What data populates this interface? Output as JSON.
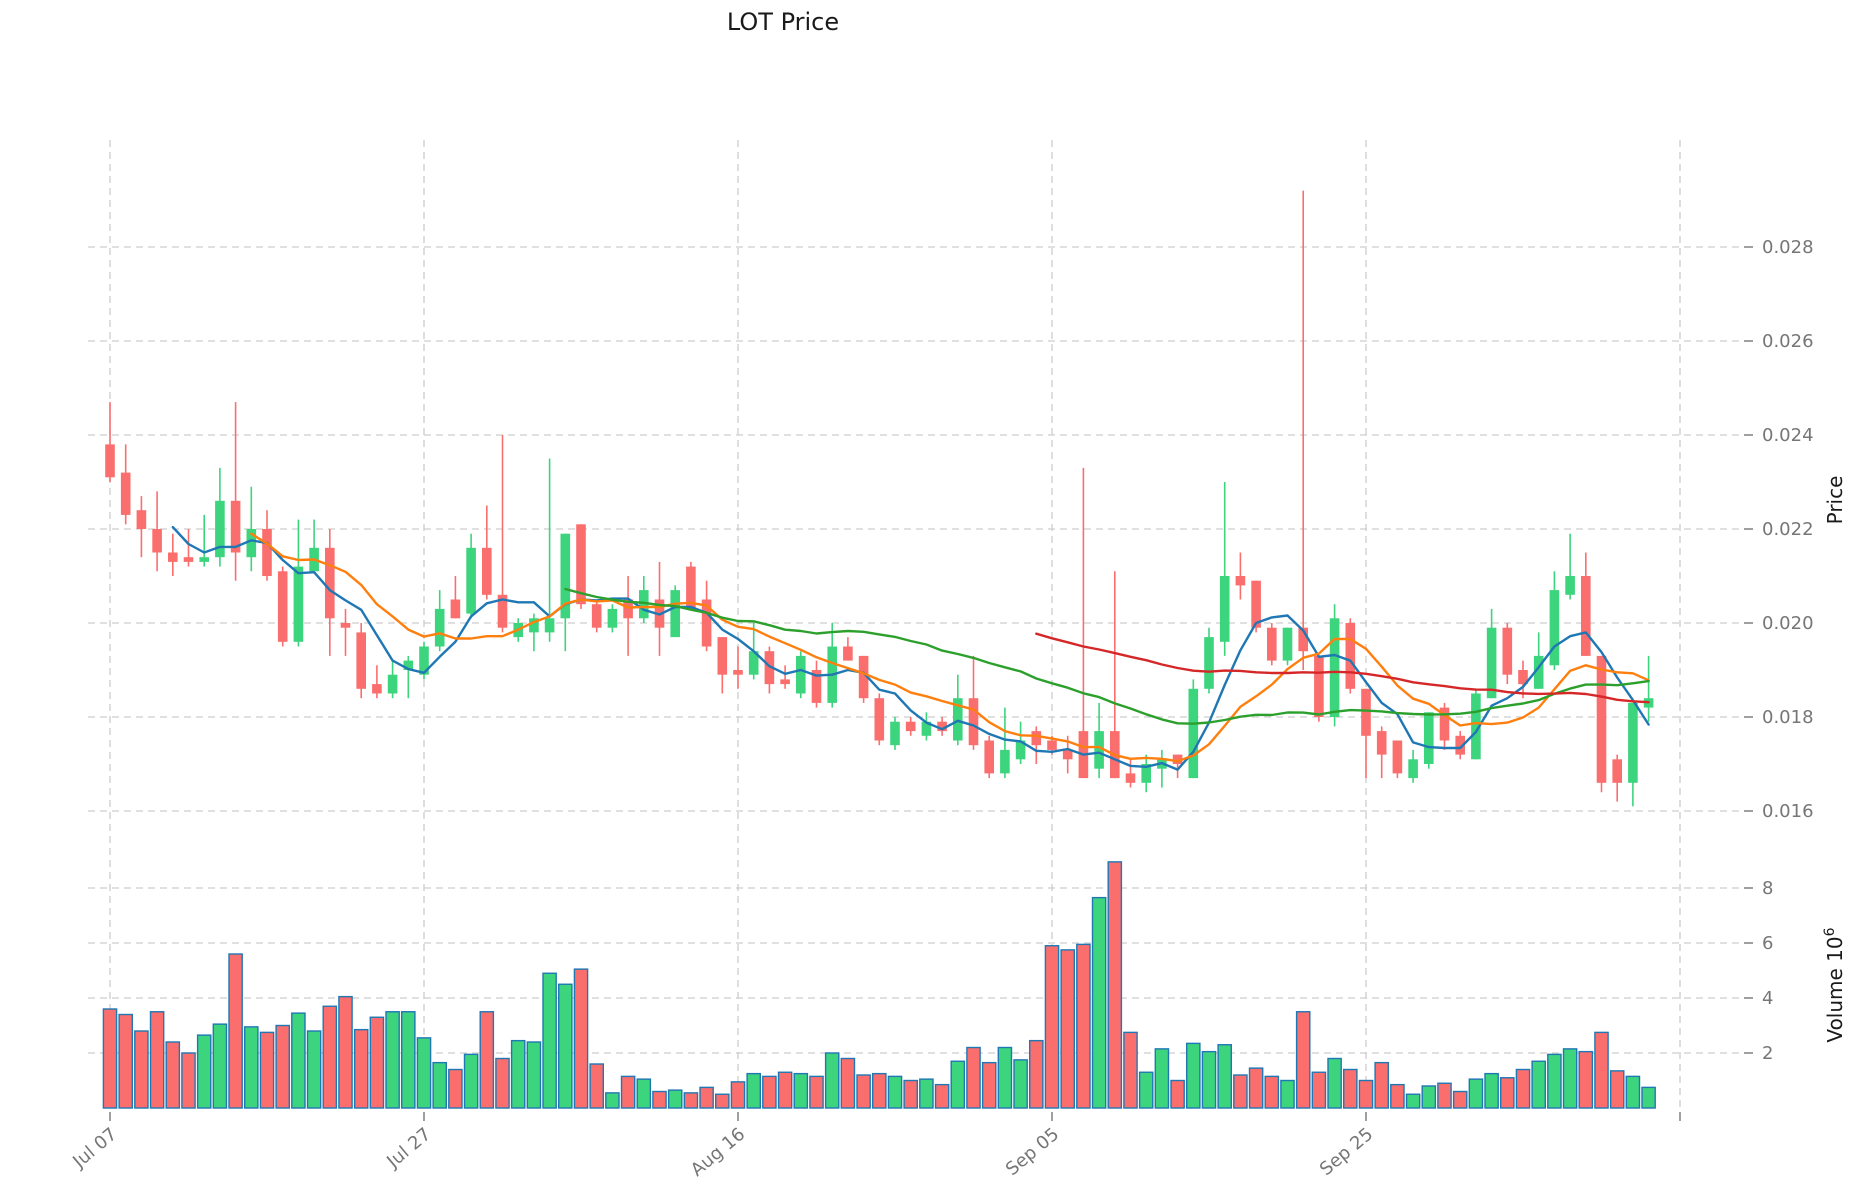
{
  "title": "LOT Price",
  "axes": {
    "price_label": "Price",
    "volume_label": "Volume",
    "volume_scale_base": "10",
    "volume_scale_exp": "6",
    "price_ticks": [
      {
        "v": 0.016,
        "label": "0.016"
      },
      {
        "v": 0.018,
        "label": "0.018"
      },
      {
        "v": 0.02,
        "label": "0.020"
      },
      {
        "v": 0.022,
        "label": "0.022"
      },
      {
        "v": 0.024,
        "label": "0.024"
      },
      {
        "v": 0.026,
        "label": "0.026"
      },
      {
        "v": 0.028,
        "label": "0.028"
      }
    ],
    "volume_ticks": [
      {
        "v": 2,
        "label": "2"
      },
      {
        "v": 4,
        "label": "4"
      },
      {
        "v": 6,
        "label": "6"
      },
      {
        "v": 8,
        "label": "8"
      }
    ],
    "x_ticks": [
      {
        "i": 0,
        "label": "Jul 07"
      },
      {
        "i": 20,
        "label": "Jul 27"
      },
      {
        "i": 40,
        "label": "Aug 16"
      },
      {
        "i": 60,
        "label": "Sep 05"
      },
      {
        "i": 80,
        "label": "Sep 25"
      },
      {
        "i": 100,
        "label": ""
      }
    ]
  },
  "chart_data": {
    "type": "candlestick",
    "title": "LOT Price",
    "legend_position": "none",
    "grid": true,
    "price_axis_range_shown": [
      0.016,
      0.028
    ],
    "volume_axis_range_shown_millions": [
      2,
      8
    ],
    "dates": [
      "Jul 07",
      "Jul 08",
      "Jul 09",
      "Jul 10",
      "Jul 11",
      "Jul 12",
      "Jul 13",
      "Jul 14",
      "Jul 15",
      "Jul 16",
      "Jul 17",
      "Jul 18",
      "Jul 19",
      "Jul 20",
      "Jul 21",
      "Jul 22",
      "Jul 23",
      "Jul 24",
      "Jul 25",
      "Jul 26",
      "Jul 27",
      "Jul 28",
      "Jul 29",
      "Jul 30",
      "Jul 31",
      "Aug 01",
      "Aug 02",
      "Aug 03",
      "Aug 04",
      "Aug 05",
      "Aug 06",
      "Aug 07",
      "Aug 08",
      "Aug 09",
      "Aug 10",
      "Aug 11",
      "Aug 12",
      "Aug 13",
      "Aug 14",
      "Aug 15",
      "Aug 16",
      "Aug 17",
      "Aug 18",
      "Aug 19",
      "Aug 20",
      "Aug 21",
      "Aug 22",
      "Aug 23",
      "Aug 24",
      "Aug 25",
      "Aug 26",
      "Aug 27",
      "Aug 28",
      "Aug 29",
      "Aug 30",
      "Aug 31",
      "Sep 01",
      "Sep 02",
      "Sep 03",
      "Sep 04",
      "Sep 05",
      "Sep 06",
      "Sep 07",
      "Sep 08",
      "Sep 09",
      "Sep 10",
      "Sep 11",
      "Sep 12",
      "Sep 13",
      "Sep 14",
      "Sep 15",
      "Sep 16",
      "Sep 17",
      "Sep 18",
      "Sep 19",
      "Sep 20",
      "Sep 21",
      "Sep 22",
      "Sep 23",
      "Sep 24",
      "Sep 25",
      "Sep 26",
      "Sep 27",
      "Sep 28",
      "Sep 29",
      "Sep 30",
      "Oct 01",
      "Oct 02",
      "Oct 03",
      "Oct 04",
      "Oct 05",
      "Oct 06",
      "Oct 07",
      "Oct 08",
      "Oct 09",
      "Oct 10",
      "Oct 11",
      "Oct 12",
      "Oct 13"
    ],
    "open": [
      0.0238,
      0.0232,
      0.0224,
      0.022,
      0.0215,
      0.0214,
      0.0213,
      0.0214,
      0.0226,
      0.0214,
      0.022,
      0.0211,
      0.0196,
      0.0211,
      0.0216,
      0.02,
      0.0198,
      0.0187,
      0.0185,
      0.019,
      0.0189,
      0.0195,
      0.0205,
      0.0202,
      0.0216,
      0.0206,
      0.0197,
      0.0198,
      0.0198,
      0.0201,
      0.0221,
      0.0204,
      0.0199,
      0.0205,
      0.0201,
      0.0205,
      0.0197,
      0.0212,
      0.0205,
      0.0197,
      0.019,
      0.0189,
      0.0194,
      0.0188,
      0.0185,
      0.019,
      0.0183,
      0.0195,
      0.0193,
      0.0184,
      0.0174,
      0.0179,
      0.0176,
      0.0179,
      0.0175,
      0.0184,
      0.0175,
      0.0168,
      0.0171,
      0.0177,
      0.0175,
      0.0173,
      0.0177,
      0.0169,
      0.0177,
      0.0168,
      0.0166,
      0.0169,
      0.0172,
      0.0167,
      0.0186,
      0.0196,
      0.021,
      0.0209,
      0.0199,
      0.0192,
      0.0199,
      0.0193,
      0.018,
      0.02,
      0.0186,
      0.0177,
      0.0175,
      0.0167,
      0.017,
      0.0182,
      0.0176,
      0.0171,
      0.0184,
      0.0199,
      0.019,
      0.0186,
      0.0191,
      0.0206,
      0.021,
      0.0193,
      0.0171,
      0.0166,
      0.0182
    ],
    "high": [
      0.0247,
      0.0238,
      0.0227,
      0.0228,
      0.0219,
      0.022,
      0.0223,
      0.0233,
      0.0247,
      0.0229,
      0.0224,
      0.0212,
      0.0222,
      0.0222,
      0.022,
      0.0203,
      0.02,
      0.0191,
      0.0192,
      0.0193,
      0.0196,
      0.0207,
      0.021,
      0.0219,
      0.0225,
      0.024,
      0.0201,
      0.0202,
      0.0235,
      0.0219,
      0.0221,
      0.0205,
      0.0204,
      0.021,
      0.021,
      0.0213,
      0.0208,
      0.0213,
      0.0209,
      0.0197,
      0.0195,
      0.02,
      0.0195,
      0.0191,
      0.0194,
      0.0192,
      0.02,
      0.0197,
      0.0193,
      0.0185,
      0.018,
      0.018,
      0.0181,
      0.018,
      0.0189,
      0.0193,
      0.0176,
      0.0182,
      0.0179,
      0.0178,
      0.0176,
      0.0176,
      0.0233,
      0.0183,
      0.0211,
      0.0171,
      0.0172,
      0.0173,
      0.0172,
      0.0188,
      0.0199,
      0.023,
      0.0215,
      0.0209,
      0.02,
      0.0199,
      0.0292,
      0.0193,
      0.0204,
      0.0201,
      0.0186,
      0.0178,
      0.0175,
      0.0173,
      0.0181,
      0.0183,
      0.0177,
      0.0186,
      0.0203,
      0.02,
      0.0192,
      0.0198,
      0.0211,
      0.0219,
      0.0215,
      0.0193,
      0.0172,
      0.0183,
      0.0193
    ],
    "low": [
      0.023,
      0.0221,
      0.0214,
      0.0211,
      0.021,
      0.0212,
      0.0212,
      0.0212,
      0.0209,
      0.0211,
      0.0209,
      0.0195,
      0.0195,
      0.0211,
      0.0193,
      0.0193,
      0.0184,
      0.0184,
      0.0184,
      0.0184,
      0.0188,
      0.0194,
      0.0201,
      0.0201,
      0.0205,
      0.0198,
      0.0196,
      0.0194,
      0.0196,
      0.0194,
      0.0203,
      0.0198,
      0.0198,
      0.0193,
      0.02,
      0.0193,
      0.0197,
      0.0203,
      0.0194,
      0.0185,
      0.0186,
      0.0188,
      0.0185,
      0.0186,
      0.0184,
      0.0182,
      0.0182,
      0.0192,
      0.0183,
      0.0174,
      0.0173,
      0.0176,
      0.0175,
      0.0176,
      0.0174,
      0.0173,
      0.0167,
      0.0167,
      0.017,
      0.017,
      0.0172,
      0.0168,
      0.0167,
      0.0167,
      0.0167,
      0.0165,
      0.0164,
      0.0165,
      0.0167,
      0.0167,
      0.0185,
      0.0193,
      0.0205,
      0.0198,
      0.0191,
      0.0191,
      0.019,
      0.0179,
      0.0178,
      0.0185,
      0.0167,
      0.0167,
      0.0167,
      0.0166,
      0.0169,
      0.0173,
      0.0171,
      0.0171,
      0.0184,
      0.0187,
      0.0184,
      0.0186,
      0.019,
      0.0205,
      0.0193,
      0.0164,
      0.0162,
      0.0161,
      0.0179
    ],
    "close": [
      0.0231,
      0.0223,
      0.022,
      0.0215,
      0.0213,
      0.0213,
      0.0214,
      0.0226,
      0.0215,
      0.022,
      0.021,
      0.0196,
      0.0212,
      0.0216,
      0.0201,
      0.0199,
      0.0186,
      0.0185,
      0.0189,
      0.0192,
      0.0195,
      0.0203,
      0.0201,
      0.0216,
      0.0206,
      0.0199,
      0.02,
      0.0201,
      0.0201,
      0.0219,
      0.0204,
      0.0199,
      0.0203,
      0.0201,
      0.0207,
      0.0199,
      0.0207,
      0.0203,
      0.0195,
      0.0189,
      0.0189,
      0.0194,
      0.0187,
      0.0187,
      0.0193,
      0.0183,
      0.0195,
      0.0192,
      0.0184,
      0.0175,
      0.0179,
      0.0177,
      0.0179,
      0.0177,
      0.0184,
      0.0174,
      0.0168,
      0.0173,
      0.0175,
      0.0174,
      0.0173,
      0.0171,
      0.0167,
      0.0177,
      0.0167,
      0.0166,
      0.017,
      0.0171,
      0.017,
      0.0186,
      0.0197,
      0.021,
      0.0208,
      0.0199,
      0.0192,
      0.0199,
      0.0194,
      0.018,
      0.0201,
      0.0186,
      0.0176,
      0.0172,
      0.0168,
      0.0171,
      0.0181,
      0.0175,
      0.0172,
      0.0185,
      0.0199,
      0.0189,
      0.0187,
      0.0193,
      0.0207,
      0.021,
      0.0193,
      0.0166,
      0.0166,
      0.0183,
      0.0184
    ],
    "volume_millions": [
      3.6,
      3.4,
      2.8,
      3.5,
      2.4,
      2.0,
      2.65,
      3.05,
      5.6,
      2.95,
      2.75,
      3.0,
      3.45,
      2.8,
      3.7,
      4.05,
      2.85,
      3.3,
      3.5,
      3.5,
      2.55,
      1.65,
      1.4,
      1.95,
      3.5,
      1.8,
      2.45,
      2.4,
      4.9,
      4.5,
      5.05,
      1.6,
      0.55,
      1.15,
      1.05,
      0.6,
      0.65,
      0.55,
      0.75,
      0.5,
      0.95,
      1.25,
      1.15,
      1.3,
      1.25,
      1.15,
      2.0,
      1.8,
      1.2,
      1.25,
      1.15,
      1.0,
      1.05,
      0.85,
      1.7,
      2.2,
      1.65,
      2.2,
      1.75,
      2.45,
      5.9,
      5.75,
      5.95,
      7.65,
      8.95,
      2.75,
      1.3,
      2.15,
      1.0,
      2.35,
      2.05,
      2.3,
      1.2,
      1.45,
      1.15,
      1.0,
      3.5,
      1.3,
      1.8,
      1.4,
      1.0,
      1.65,
      0.85,
      0.5,
      0.8,
      0.9,
      0.6,
      1.05,
      1.25,
      1.1,
      1.4,
      1.7,
      1.95,
      2.15,
      2.05,
      2.75,
      1.35,
      1.15,
      0.75
    ],
    "moving_averages": [
      {
        "name": "ma-5",
        "window": 5,
        "color": "#1f77b4"
      },
      {
        "name": "ma-10",
        "window": 10,
        "color": "#ff7f0e"
      },
      {
        "name": "ma-30",
        "window": 30,
        "color": "#2ca02c"
      },
      {
        "name": "ma-60",
        "window": 60,
        "color": "#d62728"
      }
    ],
    "colors": {
      "up": "#3dd47e",
      "down": "#fa6e6e",
      "volume_bar_edge": "#1f77b4",
      "grid": "#cdcdcd",
      "tick_text": "#767676",
      "axis_label_text": "#1a1a1a"
    }
  }
}
